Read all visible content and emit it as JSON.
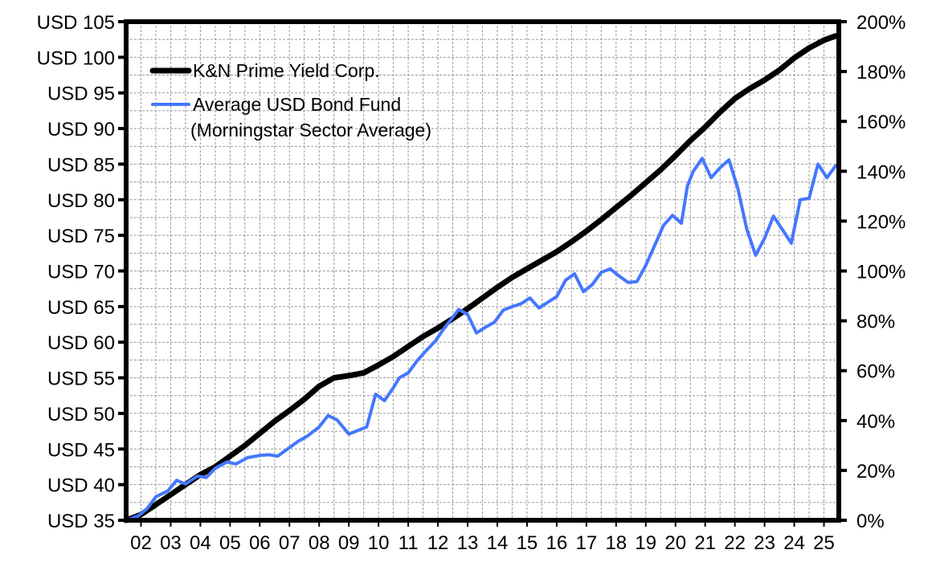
{
  "chart_data": {
    "type": "line",
    "title": "",
    "xlabel": "",
    "ylabel": "",
    "ylabel_right": "",
    "x_ticks": [
      "02",
      "03",
      "04",
      "05",
      "06",
      "07",
      "08",
      "09",
      "10",
      "11",
      "12",
      "13",
      "14",
      "15",
      "16",
      "17",
      "18",
      "19",
      "20",
      "21",
      "22",
      "23",
      "24",
      "25"
    ],
    "x_range": [
      2001.5,
      2025.5
    ],
    "y_left_ticks": [
      "USD 35",
      "USD 40",
      "USD 45",
      "USD 50",
      "USD 55",
      "USD 60",
      "USD 65",
      "USD 70",
      "USD 75",
      "USD 80",
      "USD 85",
      "USD 90",
      "USD 95",
      "USD 100",
      "USD 105"
    ],
    "y_left_range": [
      35,
      105
    ],
    "y_right_ticks": [
      "0%",
      "20%",
      "40%",
      "60%",
      "80%",
      "100%",
      "120%",
      "140%",
      "160%",
      "180%",
      "200%"
    ],
    "y_right_range": [
      0,
      200
    ],
    "grid": true,
    "legend_placement": "top-left",
    "series": [
      {
        "name": "K&N Prime Yield Corp.",
        "color": "#000000",
        "x": [
          2001.5,
          2002,
          2002.5,
          2003,
          2003.5,
          2004,
          2004.5,
          2005,
          2005.5,
          2006,
          2006.5,
          2007,
          2007.5,
          2008,
          2008.5,
          2009,
          2009.5,
          2010,
          2010.5,
          2011,
          2011.5,
          2012,
          2012.5,
          2013,
          2013.5,
          2014,
          2014.5,
          2015,
          2015.5,
          2016,
          2016.5,
          2017,
          2017.5,
          2018,
          2018.5,
          2019,
          2019.5,
          2020,
          2020.5,
          2021,
          2021.5,
          2022,
          2022.5,
          2023,
          2023.5,
          2024,
          2024.5,
          2025,
          2025.4
        ],
        "values": [
          35.0,
          35.8,
          37.2,
          38.6,
          40.0,
          41.4,
          42.5,
          44.0,
          45.5,
          47.2,
          48.9,
          50.4,
          52.0,
          53.8,
          55.0,
          55.3,
          55.7,
          56.8,
          58.0,
          59.4,
          60.8,
          62.0,
          63.3,
          64.7,
          66.2,
          67.7,
          69.1,
          70.3,
          71.5,
          72.7,
          74.1,
          75.6,
          77.2,
          78.9,
          80.6,
          82.4,
          84.2,
          86.2,
          88.3,
          90.2,
          92.3,
          94.2,
          95.6,
          96.8,
          98.2,
          99.9,
          101.3,
          102.4,
          103.0
        ]
      },
      {
        "name": "Average USD Bond Fund\n(Morningstar Sector Average)",
        "legend_lines": [
          "Average USD Bond Fund",
          "(Morningstar Sector Average)"
        ],
        "color": "#4477ff",
        "x": [
          2001.5,
          2001.9,
          2002.2,
          2002.5,
          2002.9,
          2003.2,
          2003.5,
          2003.9,
          2004.2,
          2004.5,
          2004.9,
          2005.2,
          2005.6,
          2006.0,
          2006.3,
          2006.6,
          2007.0,
          2007.3,
          2007.6,
          2008.0,
          2008.3,
          2008.6,
          2009.0,
          2009.3,
          2009.6,
          2009.9,
          2010.2,
          2010.5,
          2010.7,
          2011.0,
          2011.3,
          2011.6,
          2011.9,
          2012.2,
          2012.5,
          2012.7,
          2013.0,
          2013.3,
          2013.6,
          2013.9,
          2014.2,
          2014.5,
          2014.8,
          2015.1,
          2015.4,
          2015.7,
          2016.0,
          2016.3,
          2016.6,
          2016.9,
          2017.2,
          2017.5,
          2017.8,
          2018.1,
          2018.4,
          2018.7,
          2019.0,
          2019.3,
          2019.6,
          2019.9,
          2020.2,
          2020.4,
          2020.6,
          2020.9,
          2021.2,
          2021.5,
          2021.8,
          2022.1,
          2022.4,
          2022.7,
          2023.0,
          2023.3,
          2023.6,
          2023.9,
          2024.2,
          2024.5,
          2024.8,
          2025.1,
          2025.4
        ],
        "values": [
          35.0,
          35.6,
          36.6,
          38.3,
          39.1,
          40.6,
          40.1,
          41.2,
          41.0,
          42.3,
          43.2,
          42.9,
          43.8,
          44.1,
          44.2,
          44.0,
          45.2,
          46.1,
          46.8,
          48.1,
          49.7,
          49.1,
          47.1,
          47.6,
          48.1,
          52.7,
          51.8,
          53.6,
          55.0,
          55.7,
          57.4,
          58.8,
          60.1,
          61.9,
          63.5,
          64.6,
          63.9,
          61.3,
          62.1,
          62.8,
          64.5,
          65.0,
          65.4,
          66.2,
          64.8,
          65.6,
          66.4,
          68.7,
          69.6,
          67.1,
          68.1,
          69.8,
          70.3,
          69.3,
          68.4,
          68.5,
          70.8,
          73.6,
          76.4,
          77.8,
          76.7,
          81.9,
          84.0,
          85.8,
          83.1,
          84.5,
          85.6,
          81.6,
          75.9,
          72.2,
          74.6,
          77.7,
          75.8,
          73.9,
          80.0,
          80.2,
          85.0,
          83.1,
          84.8
        ]
      }
    ]
  }
}
